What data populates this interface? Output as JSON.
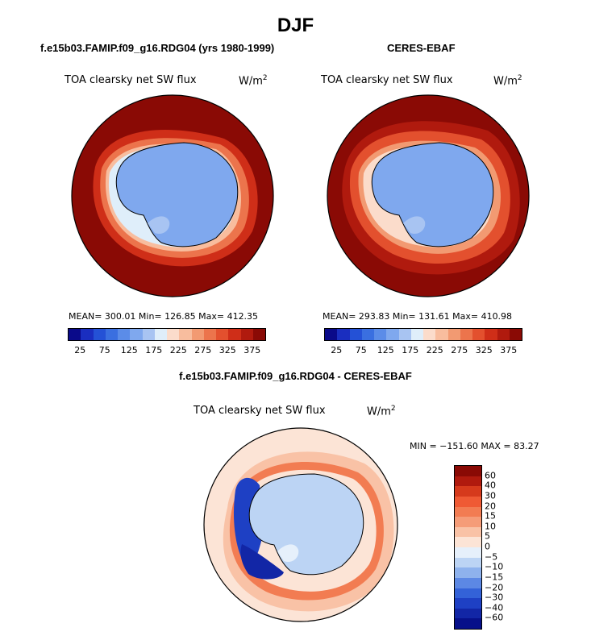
{
  "season": "DJF",
  "panels": [
    {
      "header": "f.e15b03.FAMIP.f09_g16.RDG04 (yrs 1980-1999)",
      "variable": "TOA clearsky net SW flux",
      "unit_base": "W/m",
      "unit_exp": "2",
      "stats": "MEAN= 300.01   Min= 126.85   Max= 412.35"
    },
    {
      "header": "CERES-EBAF",
      "variable": "TOA clearsky net SW flux",
      "unit_base": "W/m",
      "unit_exp": "2",
      "stats": "MEAN= 293.83   Min= 131.61   Max= 410.98"
    }
  ],
  "diff_panel": {
    "header": "f.e15b03.FAMIP.f09_g16.RDG04 - CERES-EBAF",
    "variable": "TOA clearsky net SW flux",
    "unit_base": "W/m",
    "unit_exp": "2",
    "stats": "MIN = −151.60  MAX =  83.27"
  },
  "colorbar_main": {
    "colors": [
      "#0a0a8a",
      "#1a2ec0",
      "#2451d6",
      "#3a6fe0",
      "#5b8ce8",
      "#7fa8ee",
      "#a8c4f2",
      "#dfeefa",
      "#fbdccb",
      "#f8bd9e",
      "#f29a72",
      "#ec744c",
      "#e3502e",
      "#cf2e18",
      "#b01a0e",
      "#8a0a05"
    ],
    "ticks": [
      "25",
      "75",
      "125",
      "175",
      "225",
      "275",
      "325",
      "375"
    ]
  },
  "colorbar_diff": {
    "colors": [
      "#8a0a05",
      "#b01a0e",
      "#d63a1c",
      "#ef5a34",
      "#f27c52",
      "#f59c78",
      "#f9c2a6",
      "#fce4d6",
      "#e6f0fb",
      "#bcd4f4",
      "#8eb2ed",
      "#5c88e4",
      "#3362d8",
      "#1e40c4",
      "#1226a6",
      "#07108a"
    ],
    "ticks": [
      "60",
      "40",
      "30",
      "20",
      "15",
      "10",
      "5",
      "0",
      "−5",
      "−10",
      "−15",
      "−20",
      "−30",
      "−40",
      "−60"
    ]
  },
  "chart_data": [
    {
      "type": "heatmap",
      "title": "f.e15b03.FAMIP.f09_g16.RDG04 (yrs 1980-1999)",
      "variable": "TOA clearsky net SW flux",
      "units": "W/m2",
      "projection": "south polar stereographic",
      "mean": 300.01,
      "min": 126.85,
      "max": 412.35,
      "levels": [
        25,
        50,
        75,
        100,
        125,
        150,
        175,
        200,
        225,
        250,
        275,
        300,
        325,
        350,
        375
      ]
    },
    {
      "type": "heatmap",
      "title": "CERES-EBAF",
      "variable": "TOA clearsky net SW flux",
      "units": "W/m2",
      "projection": "south polar stereographic",
      "mean": 293.83,
      "min": 131.61,
      "max": 410.98,
      "levels": [
        25,
        50,
        75,
        100,
        125,
        150,
        175,
        200,
        225,
        250,
        275,
        300,
        325,
        350,
        375
      ]
    },
    {
      "type": "heatmap",
      "title": "f.e15b03.FAMIP.f09_g16.RDG04 - CERES-EBAF",
      "variable": "TOA clearsky net SW flux",
      "units": "W/m2",
      "projection": "south polar stereographic",
      "min": -151.6,
      "max": 83.27,
      "levels": [
        -60,
        -40,
        -30,
        -20,
        -15,
        -10,
        -5,
        0,
        5,
        10,
        15,
        20,
        30,
        40,
        60
      ]
    }
  ]
}
